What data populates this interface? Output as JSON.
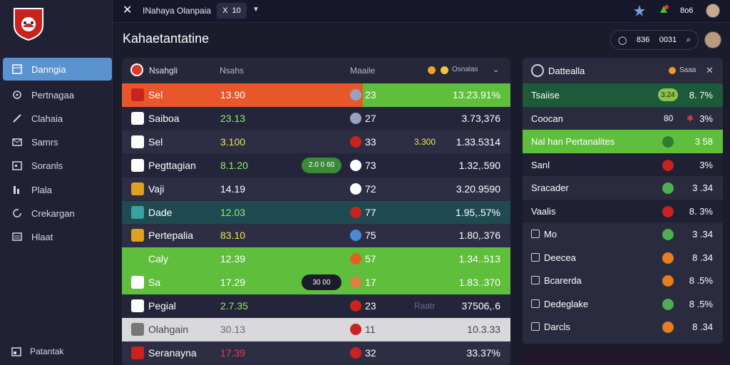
{
  "topbar": {
    "title": "INahaya Olanpaia",
    "chip_a": "X",
    "chip_b": "10",
    "value": "8o6"
  },
  "page": {
    "title": "Kahaetantatine",
    "pill_a": "836",
    "pill_b": "0031"
  },
  "sidebar": {
    "items": [
      {
        "label": "Danngia",
        "icon": "grid-icon"
      },
      {
        "label": "Pertnagaa",
        "icon": "gear-icon"
      },
      {
        "label": "Clahaia",
        "icon": "pin-icon"
      },
      {
        "label": "Samrs",
        "icon": "mail-icon"
      },
      {
        "label": "Soranls",
        "icon": "calendar-icon"
      },
      {
        "label": "Plala",
        "icon": "chart-icon"
      },
      {
        "label": "Crekargan",
        "icon": "refresh-icon"
      },
      {
        "label": "Hlaat",
        "icon": "list-icon"
      }
    ],
    "footer": "Patantak"
  },
  "table": {
    "headers": {
      "team": "Nsahgli",
      "a": "Nsahs",
      "b": "Maaile",
      "c": "Osnalas"
    },
    "rows": [
      {
        "name": "Sel",
        "val": "13.90",
        "num": "23",
        "pct": "13.23.91%",
        "style": "orange-green",
        "valColor": "#ffffff"
      },
      {
        "name": "Saiboa",
        "val": "23.13",
        "num": "27",
        "pct": "3.73,376",
        "style": "dark",
        "valColor": "#8cf06a"
      },
      {
        "name": "Sel",
        "val": "3.100",
        "num": "33",
        "pct": "1.33.5314",
        "extra": "3.300",
        "style": "dark2",
        "valColor": "#f0e84a"
      },
      {
        "name": "Pegttagian",
        "val": "8.1.20",
        "num": "73",
        "pct": "1.32,.590",
        "pill": "2.0 0 60",
        "style": "dark",
        "valColor": "#8cf06a"
      },
      {
        "name": "Vaji",
        "val": "14.19",
        "num": "72",
        "pct": "3.20.9590",
        "style": "dark2",
        "valColor": "#ffffff"
      },
      {
        "name": "Dade",
        "val": "12.03",
        "num": "77",
        "pct": "1.95,.57%",
        "style": "teal",
        "valColor": "#8cf06a"
      },
      {
        "name": "Pertepalia",
        "val": "83.10",
        "num": "75",
        "pct": "1.80,.376",
        "style": "dark2",
        "valColor": "#f0e84a"
      },
      {
        "name": "Caly",
        "val": "12.39",
        "num": "57",
        "pct": "1.34..513",
        "style": "green",
        "valColor": "#ffffff"
      },
      {
        "name": "Sa",
        "val": "17.29",
        "num": "17",
        "pct": "1.83..370",
        "pill": "30 00",
        "style": "green",
        "valColor": "#ffffff"
      },
      {
        "name": "Pegial",
        "val": "2.7.35",
        "num": "23",
        "pct": "37506,.6",
        "extra": "Raatr",
        "style": "dark",
        "valColor": "#8cf06a"
      },
      {
        "name": "Olahgain",
        "val": "30.13",
        "num": "11",
        "pct": "10.3.33",
        "style": "light",
        "valColor": "#6a6a75"
      },
      {
        "name": "Seranayna",
        "val": "17.39",
        "num": "32",
        "pct": "33.37%",
        "style": "dark2",
        "valColor": "#e04040"
      }
    ]
  },
  "side": {
    "title": "Dattealla",
    "label": "Saaa",
    "rows": [
      {
        "label": "Tsaiise",
        "chip": "3.24",
        "val": "8. 7%",
        "style": "dkgreen"
      },
      {
        "label": "Coocan",
        "mid": "80",
        "val": "3%",
        "style": "dark"
      },
      {
        "label": "Nal han Pertanalites",
        "val": "3 58",
        "style": "green"
      },
      {
        "label": "Sanl",
        "val": "3%",
        "style": "dark2"
      },
      {
        "label": "Sracader",
        "val": "3 .34",
        "style": "dark"
      },
      {
        "label": "Vaalis",
        "val": "8. 3%",
        "style": "dark2"
      },
      {
        "label": "Mo",
        "val": "3 .34",
        "style": "dark",
        "check": true
      },
      {
        "label": "Deecea",
        "val": "8 .34",
        "style": "dark",
        "check": true
      },
      {
        "label": "Bcarerda",
        "val": "8 .5%",
        "style": "dark",
        "check": true
      },
      {
        "label": "Dedeglake",
        "val": "8 .5%",
        "style": "dark",
        "check": true
      },
      {
        "label": "Darcls",
        "val": "8 .34",
        "style": "dark",
        "check": true
      }
    ]
  }
}
